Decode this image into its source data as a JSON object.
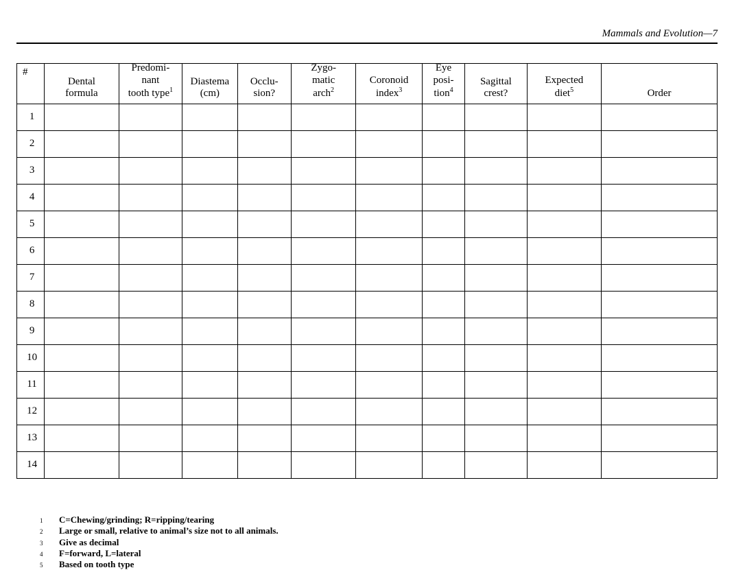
{
  "page": {
    "running_head": "Mammals and Evolution—7"
  },
  "table": {
    "headers": {
      "num": "#",
      "dental_l1": "Dental",
      "dental_l2": "formula",
      "tooth_l1": "Predomi-",
      "tooth_l2": "nant",
      "tooth_l3": "tooth type",
      "tooth_sup": "1",
      "diastema_l1": "Diastema",
      "diastema_l2": "(cm)",
      "occlusion_l1": "Occlu-",
      "occlusion_l2": "sion?",
      "zygo_l1": "Zygo-",
      "zygo_l2": "matic",
      "zygo_l3": "arch",
      "zygo_sup": "2",
      "coronoid_l1": "Coronoid",
      "coronoid_l2": "index",
      "coronoid_sup": "3",
      "eye_l1": "Eye",
      "eye_l2": "posi-",
      "eye_l3": "tion",
      "eye_sup": "4",
      "sagittal_l1": "Sagittal",
      "sagittal_l2": "crest?",
      "diet_l1": "Expected",
      "diet_l2": "diet",
      "diet_sup": "5",
      "order": "Order"
    },
    "rows": [
      {
        "n": "1"
      },
      {
        "n": "2"
      },
      {
        "n": "3"
      },
      {
        "n": "4"
      },
      {
        "n": "5"
      },
      {
        "n": "6"
      },
      {
        "n": "7"
      },
      {
        "n": "8"
      },
      {
        "n": "9"
      },
      {
        "n": "10"
      },
      {
        "n": "11"
      },
      {
        "n": "12"
      },
      {
        "n": "13"
      },
      {
        "n": "14"
      }
    ]
  },
  "footnotes": [
    {
      "mark": "1",
      "text": "C=Chewing/grinding; R=ripping/tearing"
    },
    {
      "mark": "2",
      "text": "Large or small, relative to animal’s size not to all animals."
    },
    {
      "mark": "3",
      "text": "Give as decimal"
    },
    {
      "mark": "4",
      "text": "F=forward, L=lateral"
    },
    {
      "mark": "5",
      "text": "Based on tooth type"
    }
  ]
}
